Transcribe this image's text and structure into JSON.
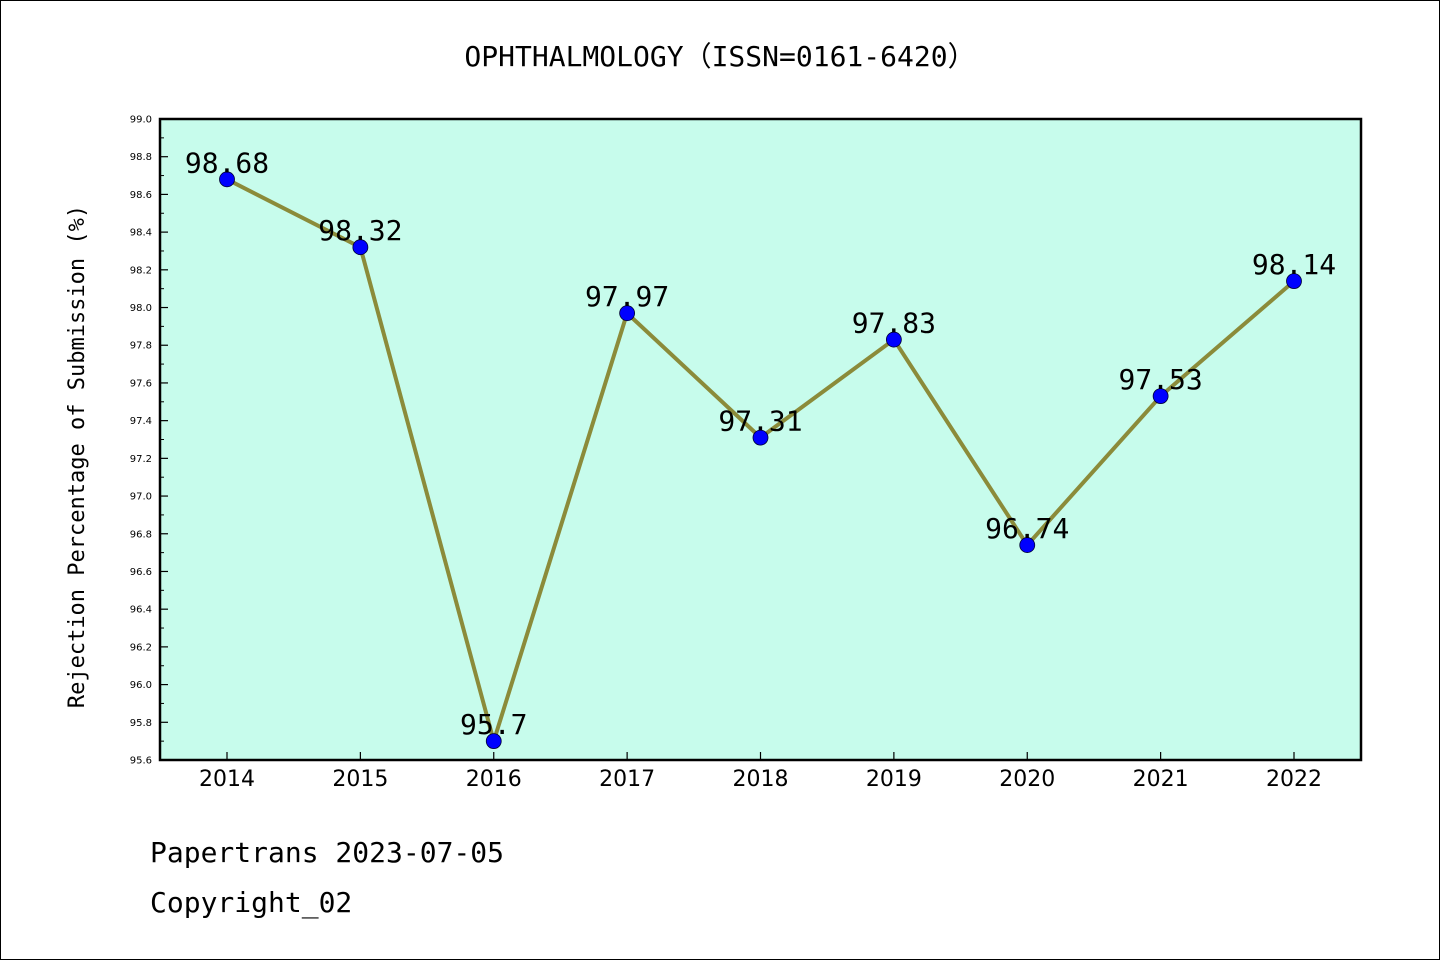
{
  "chart_data": {
    "type": "line",
    "title": "OPHTHALMOLOGY（ISSN=0161-6420）",
    "ylabel": "Rejection Percentage of Submission (%)",
    "xlabel": "",
    "categories": [
      "2014",
      "2015",
      "2016",
      "2017",
      "2018",
      "2019",
      "2020",
      "2021",
      "2022"
    ],
    "series": [
      {
        "values": [
          98.68,
          98.32,
          95.7,
          97.97,
          97.31,
          97.83,
          96.74,
          97.53,
          98.14
        ],
        "data_labels": [
          "98.68",
          "98.32",
          "95.7",
          "97.97",
          "97.31",
          "97.83",
          "96.74",
          "97.53",
          "98.14"
        ]
      }
    ],
    "ylim": [
      95.6,
      99.0
    ],
    "yticks": [
      "95.6",
      "95.8",
      "96.0",
      "96.2",
      "96.4",
      "96.6",
      "96.8",
      "97.0",
      "97.2",
      "97.4",
      "97.6",
      "97.8",
      "98.0",
      "98.2",
      "98.4",
      "98.6",
      "98.8",
      "99.0"
    ],
    "grid": false,
    "colors": {
      "plot_background": "#c7fcec",
      "line": "#8b8b3a",
      "marker": "#0000ff"
    }
  },
  "footer": {
    "line1": "Papertrans 2023-07-05",
    "line2": "Copyright_02"
  }
}
